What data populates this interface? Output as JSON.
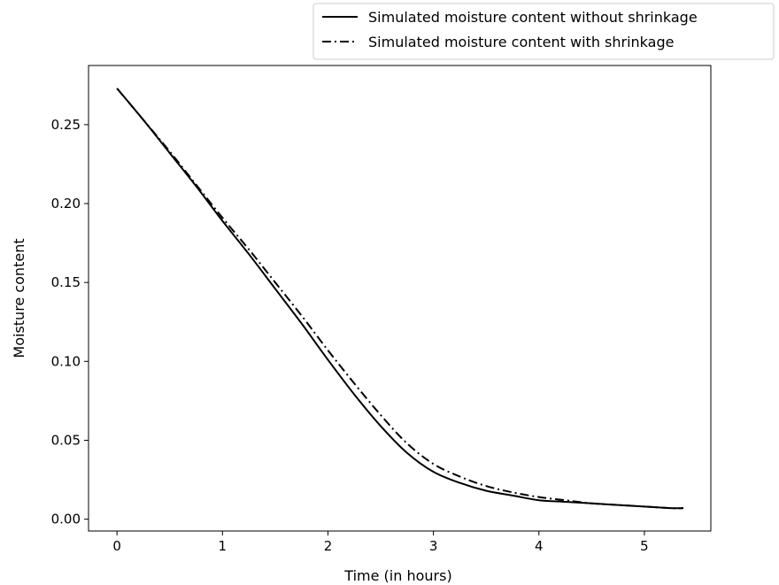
{
  "chart_data": {
    "type": "line",
    "title": "",
    "xlabel": "Time (in hours)",
    "ylabel": "Moisture content",
    "xlim": [
      -0.27,
      5.63
    ],
    "ylim": [
      -0.0075,
      0.2875
    ],
    "grid": false,
    "legend_position": "top-right, above plot",
    "x_ticks": [
      {
        "value": 0,
        "label": "0"
      },
      {
        "value": 1,
        "label": "1"
      },
      {
        "value": 2,
        "label": "2"
      },
      {
        "value": 3,
        "label": "3"
      },
      {
        "value": 4,
        "label": "4"
      },
      {
        "value": 5,
        "label": "5"
      }
    ],
    "y_ticks": [
      {
        "value": 0.0,
        "label": "0.00"
      },
      {
        "value": 0.05,
        "label": "0.05"
      },
      {
        "value": 0.1,
        "label": "0.10"
      },
      {
        "value": 0.15,
        "label": "0.15"
      },
      {
        "value": 0.2,
        "label": "0.20"
      },
      {
        "value": 0.25,
        "label": "0.25"
      }
    ],
    "series": [
      {
        "name": "Simulated moisture content without shrinkage",
        "style": "solid",
        "color": "#000000",
        "x": [
          0,
          0.25,
          0.5,
          0.75,
          1.0,
          1.25,
          1.5,
          1.75,
          2.0,
          2.25,
          2.5,
          2.75,
          3.0,
          3.25,
          3.5,
          3.75,
          4.0,
          4.25,
          4.5,
          4.75,
          5.0,
          5.25,
          5.37
        ],
        "y": [
          0.273,
          0.253,
          0.232,
          0.211,
          0.189,
          0.168,
          0.146,
          0.124,
          0.101,
          0.079,
          0.059,
          0.042,
          0.03,
          0.023,
          0.018,
          0.015,
          0.012,
          0.011,
          0.01,
          0.009,
          0.008,
          0.007,
          0.007
        ]
      },
      {
        "name": "Simulated moisture content with shrinkage",
        "style": "dashdot",
        "color": "#000000",
        "x": [
          0,
          0.25,
          0.5,
          0.75,
          1.0,
          1.25,
          1.5,
          1.75,
          2.0,
          2.25,
          2.5,
          2.75,
          3.0,
          3.25,
          3.5,
          3.75,
          4.0,
          4.25,
          4.5,
          4.75,
          5.0,
          5.25,
          5.37
        ],
        "y": [
          0.273,
          0.253,
          0.233,
          0.212,
          0.191,
          0.171,
          0.15,
          0.129,
          0.107,
          0.086,
          0.066,
          0.048,
          0.035,
          0.027,
          0.021,
          0.017,
          0.014,
          0.012,
          0.01,
          0.009,
          0.008,
          0.007,
          0.007
        ]
      }
    ]
  }
}
